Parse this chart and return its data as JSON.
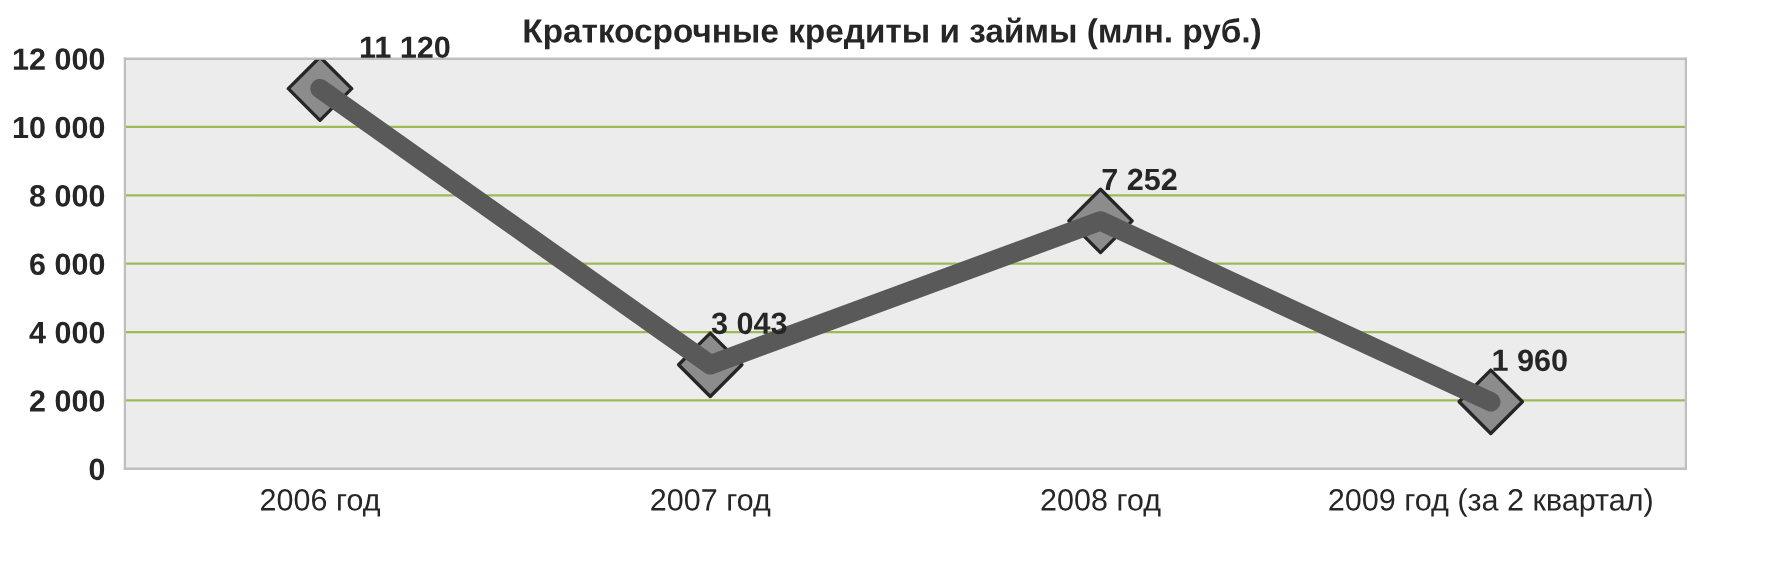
{
  "chart_data": {
    "type": "line",
    "title": "Краткосрочные кредиты и займы (млн. руб.)",
    "categories": [
      "2006 год",
      "2007 год",
      "2008 год",
      "2009 год (за 2 квартал)"
    ],
    "series": [
      {
        "color": "#595959",
        "values": [
          11120,
          3043,
          7252,
          1960
        ],
        "value_labels": [
          "11 120",
          "3 043",
          "7 252",
          "1 960"
        ]
      }
    ],
    "ylim": [
      0,
      12000
    ],
    "yticks": [
      {
        "value": 0,
        "label": "0"
      },
      {
        "value": 2000,
        "label": "2 000"
      },
      {
        "value": 4000,
        "label": "4 000"
      },
      {
        "value": 6000,
        "label": "6 000"
      },
      {
        "value": 8000,
        "label": "8 000"
      },
      {
        "value": 10000,
        "label": "10 000"
      },
      {
        "value": 12000,
        "label": "12 000"
      }
    ],
    "grid": "y",
    "marker": "diamond",
    "line_style": "solid",
    "legend": false
  }
}
